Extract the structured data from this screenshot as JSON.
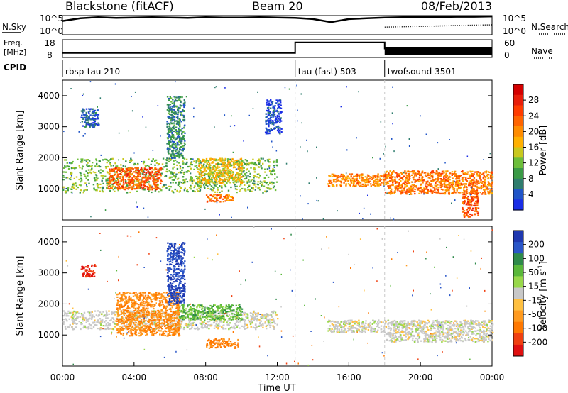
{
  "header": {
    "station": "Blackstone (fitACF)",
    "beam": "Beam 20",
    "date": "08/Feb/2013"
  },
  "chart_data": [
    {
      "type": "line",
      "panel": "noise",
      "left_label": "N.Sky",
      "right_label": "N.Search",
      "left_ticks": [
        "10^5",
        "10^0"
      ],
      "right_ticks": [
        "10^5",
        "10^0"
      ],
      "series": [
        {
          "name": "N.Sky",
          "style": "solid"
        },
        {
          "name": "N.Search",
          "style": "dotted"
        }
      ],
      "x": [
        0,
        1,
        2,
        3,
        4,
        5,
        6,
        7,
        8,
        9,
        10,
        11,
        12,
        13,
        14,
        15,
        16,
        17,
        18,
        19,
        20,
        21,
        22,
        23,
        24
      ],
      "nsky_level": [
        3.6,
        4.3,
        4.6,
        4.4,
        4.5,
        4.6,
        4.5,
        4.4,
        4.6,
        4.5,
        4.5,
        4.6,
        4.5,
        4.4,
        4.1,
        3.3,
        4.1,
        4.3,
        4.5,
        4.6,
        4.6,
        4.6,
        4.7,
        4.7,
        4.8
      ],
      "nsearch_level": [
        null,
        null,
        null,
        null,
        null,
        null,
        null,
        null,
        null,
        null,
        null,
        null,
        null,
        null,
        null,
        null,
        null,
        null,
        2.0,
        2.1,
        2.2,
        2.3,
        2.4,
        2.5,
        2.6
      ]
    },
    {
      "type": "line",
      "panel": "frequency",
      "left_label": "Freq. [MHz]",
      "right_label": "Nave",
      "left_ticks": [
        "18",
        "8"
      ],
      "right_ticks": [
        "60",
        "0"
      ],
      "series": [
        {
          "name": "Freq.",
          "style": "solid"
        },
        {
          "name": "Nave",
          "style": "dotted"
        }
      ],
      "freq_segments": [
        {
          "start": 0.0,
          "end": 13.0,
          "value": 10.5
        },
        {
          "start": 13.0,
          "end": 18.0,
          "value": 16.5
        },
        {
          "start": 18.0,
          "end": 24.0,
          "value": 13.0
        }
      ]
    },
    {
      "type": "table",
      "panel": "cpid",
      "label": "CPID",
      "segments": [
        {
          "start": 0.0,
          "end": 13.0,
          "name": "rbsp-tau 210"
        },
        {
          "start": 13.0,
          "end": 18.0,
          "name": "tau (fast) 503"
        },
        {
          "start": 18.0,
          "end": 24.0,
          "name": "twofsound 3501"
        }
      ]
    },
    {
      "type": "heatmap",
      "panel": "power",
      "xlabel": "",
      "ylabel": "Slant Range [km]",
      "ylim": [
        0,
        4500
      ],
      "yticks": [
        "1000",
        "2000",
        "3000",
        "4000"
      ],
      "colorbar": {
        "label": "Power [dB]",
        "ticks": [
          "4",
          "8",
          "12",
          "16",
          "20",
          "24",
          "28"
        ],
        "colors": [
          "#1a2de6",
          "#2055c8",
          "#2f7d6e",
          "#3a9a46",
          "#6cbe3a",
          "#c8c81e",
          "#ffb000",
          "#ff8c00",
          "#ff6400",
          "#ff3c00",
          "#e81e0a",
          "#d40000"
        ]
      },
      "features": [
        {
          "start": 0.0,
          "end": 12.0,
          "range_min": 900,
          "range_max": 2000,
          "value": 13
        },
        {
          "start": 2.5,
          "end": 5.5,
          "range_min": 1000,
          "range_max": 1700,
          "value": 24
        },
        {
          "start": 7.5,
          "end": 10.0,
          "range_min": 1200,
          "range_max": 2000,
          "value": 17
        },
        {
          "start": 8.0,
          "end": 9.5,
          "range_min": 600,
          "range_max": 850,
          "value": 22
        },
        {
          "start": 5.8,
          "end": 6.8,
          "range_min": 2000,
          "range_max": 4000,
          "value": 9
        },
        {
          "start": 1.0,
          "end": 2.0,
          "range_min": 3000,
          "range_max": 3600,
          "value": 6
        },
        {
          "start": 11.3,
          "end": 12.2,
          "range_min": 2800,
          "range_max": 3900,
          "value": 5
        },
        {
          "start": 14.8,
          "end": 18.0,
          "range_min": 1100,
          "range_max": 1500,
          "value": 21
        },
        {
          "start": 18.0,
          "end": 24.0,
          "range_min": 850,
          "range_max": 1600,
          "value": 22
        },
        {
          "start": 22.3,
          "end": 23.2,
          "range_min": 100,
          "range_max": 900,
          "value": 25
        }
      ]
    },
    {
      "type": "heatmap",
      "panel": "velocity",
      "xlabel": "Time UT",
      "ylabel": "Slant Range [km]",
      "ylim": [
        0,
        4500
      ],
      "yticks": [
        "1000",
        "2000",
        "3000",
        "4000"
      ],
      "xticks": [
        "00:00",
        "04:00",
        "08:00",
        "12:00",
        "16:00",
        "20:00",
        "00:00"
      ],
      "colorbar": {
        "label": "Velocity [m s^-1]",
        "ticks": [
          "200",
          "100",
          "50",
          "15",
          "-15",
          "-50",
          "-100",
          "-200"
        ],
        "colors": [
          "#1f38b0",
          "#2a56c8",
          "#2e8a4a",
          "#5ab83a",
          "#98d84a",
          "#c8c8c8",
          "#ffc040",
          "#ff9a1e",
          "#ff7800",
          "#f04010",
          "#e01010"
        ]
      },
      "features": [
        {
          "start": 0.0,
          "end": 12.0,
          "range_min": 1200,
          "range_max": 1800,
          "value": 0
        },
        {
          "start": 3.0,
          "end": 6.5,
          "range_min": 1000,
          "range_max": 2400,
          "value": -60
        },
        {
          "start": 8.0,
          "end": 9.8,
          "range_min": 600,
          "range_max": 900,
          "value": -70
        },
        {
          "start": 6.5,
          "end": 10.0,
          "range_min": 1500,
          "range_max": 2000,
          "value": 40
        },
        {
          "start": 5.8,
          "end": 6.8,
          "range_min": 2000,
          "range_max": 4000,
          "value": 150
        },
        {
          "start": 1.0,
          "end": 1.8,
          "range_min": 2900,
          "range_max": 3300,
          "value": -150
        },
        {
          "start": 14.8,
          "end": 18.0,
          "range_min": 1100,
          "range_max": 1500,
          "value": 0
        },
        {
          "start": 18.0,
          "end": 24.0,
          "range_min": 800,
          "range_max": 1500,
          "value": 0
        }
      ]
    }
  ]
}
